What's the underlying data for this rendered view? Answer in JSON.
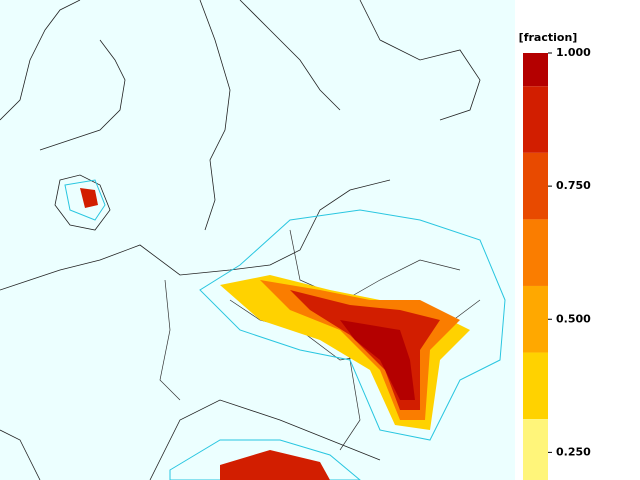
{
  "colorbar": {
    "label": "[fraction]",
    "lim": [
      0.2,
      1.0
    ],
    "ticks": [
      {
        "value": 1.0,
        "label": "1.000"
      },
      {
        "value": 0.75,
        "label": "0.750"
      },
      {
        "value": 0.5,
        "label": "0.500"
      },
      {
        "value": 0.25,
        "label": "0.250"
      }
    ],
    "bands": [
      {
        "from": 0.9375,
        "to": 1.0,
        "color": "#b40000"
      },
      {
        "from": 0.8125,
        "to": 0.9375,
        "color": "#d21e00"
      },
      {
        "from": 0.6875,
        "to": 0.8125,
        "color": "#e84a00"
      },
      {
        "from": 0.5625,
        "to": 0.6875,
        "color": "#fa7d00"
      },
      {
        "from": 0.4375,
        "to": 0.5625,
        "color": "#ffa800"
      },
      {
        "from": 0.3125,
        "to": 0.4375,
        "color": "#ffd200"
      },
      {
        "from": 0.1875,
        "to": 0.3125,
        "color": "#fff57a"
      }
    ]
  }
}
